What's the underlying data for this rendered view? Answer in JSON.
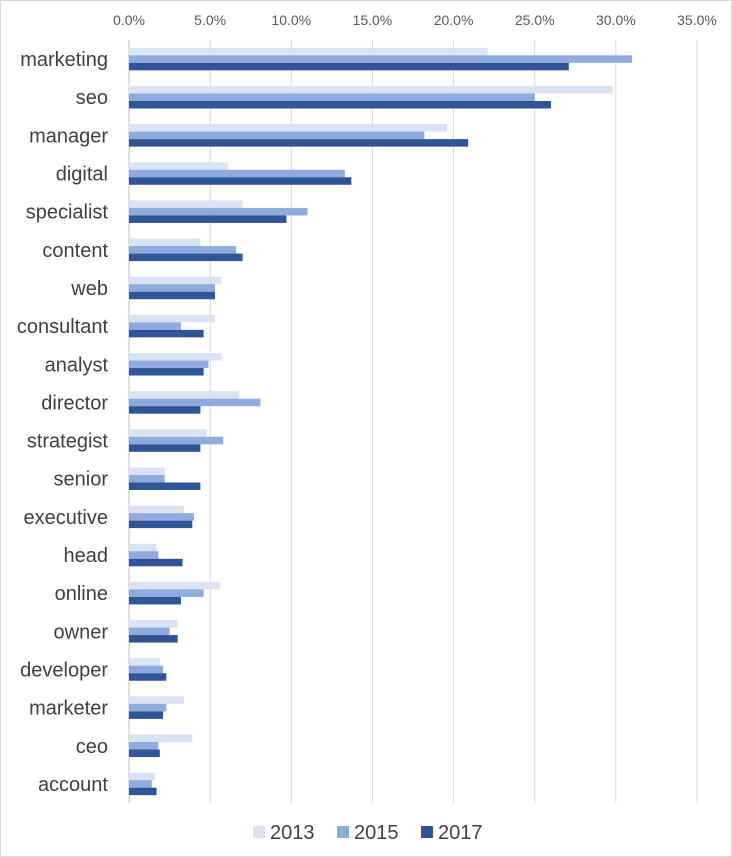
{
  "chart_data": {
    "type": "bar",
    "orientation": "horizontal",
    "title": "",
    "xlabel": "",
    "ylabel": "",
    "xlim": [
      0,
      35
    ],
    "x_tick_labels": [
      "0.0%",
      "5.0%",
      "10.0%",
      "15.0%",
      "20.0%",
      "25.0%",
      "30.0%",
      "35.0%"
    ],
    "x_axis_position": "top",
    "grid": true,
    "legend_position": "bottom",
    "categories": [
      "marketing",
      "seo",
      "manager",
      "digital",
      "specialist",
      "content",
      "web",
      "consultant",
      "analyst",
      "director",
      "strategist",
      "senior",
      "executive",
      "head",
      "online",
      "owner",
      "developer",
      "marketer",
      "ceo",
      "account"
    ],
    "series": [
      {
        "name": "2013",
        "color": "#dae3f3",
        "values": [
          22.1,
          29.8,
          19.6,
          6.1,
          7.0,
          4.4,
          5.7,
          5.3,
          5.7,
          6.8,
          4.8,
          2.2,
          3.4,
          1.7,
          5.6,
          3.0,
          1.9,
          3.4,
          3.9,
          1.6
        ]
      },
      {
        "name": "2015",
        "color": "#8faadc",
        "values": [
          31.0,
          25.0,
          18.2,
          13.3,
          11.0,
          6.6,
          5.3,
          3.2,
          4.9,
          8.1,
          5.8,
          2.2,
          4.0,
          1.8,
          4.6,
          2.5,
          2.1,
          2.3,
          1.8,
          1.4
        ]
      },
      {
        "name": "2017",
        "color": "#2f5597",
        "values": [
          27.1,
          26.0,
          20.9,
          13.7,
          9.7,
          7.0,
          5.3,
          4.6,
          4.6,
          4.4,
          4.4,
          4.4,
          3.9,
          3.3,
          3.2,
          3.0,
          2.3,
          2.1,
          1.9,
          1.7
        ]
      }
    ]
  }
}
